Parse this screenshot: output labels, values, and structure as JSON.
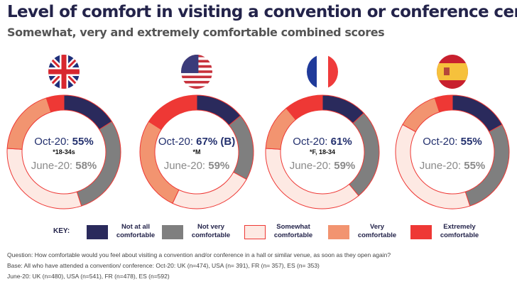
{
  "title": "Level of comfort in visiting a convention or conference center",
  "subtitle": "Somewhat, very and extremely comfortable combined scores",
  "chart_data": {
    "type": "pie",
    "donut": true,
    "categories": [
      "Not at all comfortable",
      "Not very comfortable",
      "Somewhat comfortable",
      "Very comfortable",
      "Extremely comfortable"
    ],
    "colors": [
      "#2a2a5c",
      "#7f7f7f",
      "#fde9e3",
      "#f29470",
      "#ee3835"
    ],
    "charts": [
      {
        "country": "UK",
        "flag": "uk-flag",
        "values": [
          16,
          29,
          31,
          19,
          5
        ],
        "oct_label": "Oct-20: ",
        "oct_value": "55%",
        "note": "*18-34s",
        "june_label": "June-20: ",
        "june_value": "58%"
      },
      {
        "country": "USA",
        "flag": "usa-flag",
        "values": [
          14,
          19,
          24,
          27,
          16
        ],
        "oct_label": "Oct-20: ",
        "oct_value": "67% (B)",
        "note": "*M",
        "june_label": "June-20: ",
        "june_value": "59%"
      },
      {
        "country": "FR",
        "flag": "france-flag",
        "values": [
          13,
          26,
          37,
          13,
          11
        ],
        "oct_label": "Oct-20: ",
        "oct_value": "61%",
        "note": "*F, 18-34",
        "june_label": "June-20: ",
        "june_value": "59%"
      },
      {
        "country": "ES",
        "flag": "spain-flag",
        "values": [
          17,
          28,
          38,
          12,
          5
        ],
        "oct_label": "Oct-20: ",
        "oct_value": "55%",
        "note": "",
        "june_label": "June-20: ",
        "june_value": "55%"
      }
    ]
  },
  "key": {
    "label": "KEY:",
    "items": [
      "Not at all comfortable",
      "Not very comfortable",
      "Somewhat comfortable",
      "Very comfortable",
      "Extremely comfortable"
    ]
  },
  "notes": [
    "Question: How comfortable would you feel about visiting a convention and/or conference in a hall or similar venue, as soon as they open again?",
    "Base: All who have attended a convention/ conference: Oct-20: UK (n=474), USA (n= 391), FR (n= 357), ES (n= 353)",
    "June-20: UK (n=480), USA (n=541), FR (n=478), ES (n=592)"
  ]
}
